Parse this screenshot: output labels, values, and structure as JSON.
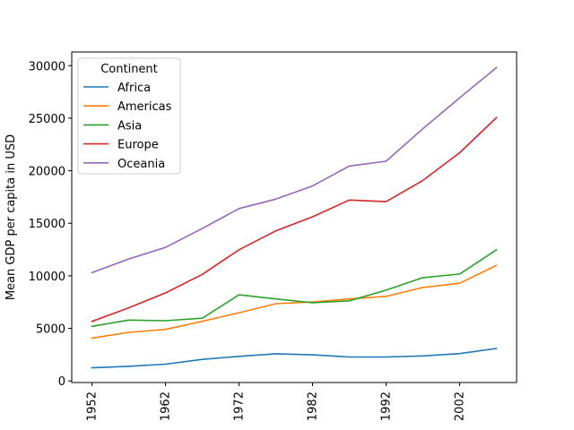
{
  "chart_data": {
    "type": "line",
    "title": "",
    "xlabel": "",
    "ylabel": "Mean GDP per capita in USD",
    "xlim": [
      1949.25,
      2009.75
    ],
    "ylim": [
      -150,
      31300
    ],
    "x": [
      1952,
      1957,
      1962,
      1967,
      1972,
      1977,
      1982,
      1987,
      1992,
      1997,
      2002,
      2007
    ],
    "xticks": [
      1952,
      1962,
      1972,
      1982,
      1992,
      2002
    ],
    "xtick_labels": [
      "1952",
      "1962",
      "1972",
      "1982",
      "1992",
      "2002"
    ],
    "yticks": [
      0,
      5000,
      10000,
      15000,
      20000,
      25000,
      30000
    ],
    "ytick_labels": [
      "0",
      "5000",
      "10000",
      "15000",
      "20000",
      "25000",
      "30000"
    ],
    "grid": false,
    "legend": {
      "title": "Continent",
      "placement": "upper-left"
    },
    "series": [
      {
        "name": "Africa",
        "color": "#1f77b4",
        "values": [
          1250,
          1390,
          1600,
          2050,
          2340,
          2590,
          2480,
          2280,
          2280,
          2380,
          2600,
          3090
        ]
      },
      {
        "name": "Americas",
        "color": "#ff7f0e",
        "values": [
          4080,
          4620,
          4900,
          5670,
          6490,
          7350,
          7510,
          7800,
          8050,
          8890,
          9290,
          11000
        ]
      },
      {
        "name": "Asia",
        "color": "#2ca02c",
        "values": [
          5190,
          5790,
          5730,
          5970,
          8190,
          7800,
          7440,
          7620,
          8640,
          9830,
          10170,
          12470
        ]
      },
      {
        "name": "Europe",
        "color": "#d62728",
        "values": [
          5660,
          6960,
          8370,
          10140,
          12480,
          14280,
          15620,
          17210,
          17060,
          19080,
          21710,
          25050
        ]
      },
      {
        "name": "Oceania",
        "color": "#9467bd",
        "values": [
          10300,
          11600,
          12700,
          14500,
          16400,
          17300,
          18550,
          20450,
          20900,
          24000,
          26940,
          29810
        ]
      }
    ]
  }
}
